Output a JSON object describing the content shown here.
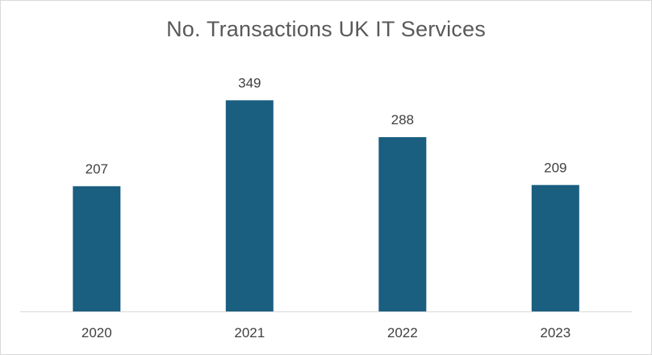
{
  "chart_data": {
    "type": "bar",
    "title": "No. Transactions UK IT Services",
    "categories": [
      "2020",
      "2021",
      "2022",
      "2023"
    ],
    "values": [
      207,
      349,
      288,
      209
    ],
    "xlabel": "",
    "ylabel": "",
    "ylim": [
      0,
      400
    ],
    "grid": false,
    "legend": "none",
    "data_labels": true,
    "bar_color": "#1a5e80"
  }
}
